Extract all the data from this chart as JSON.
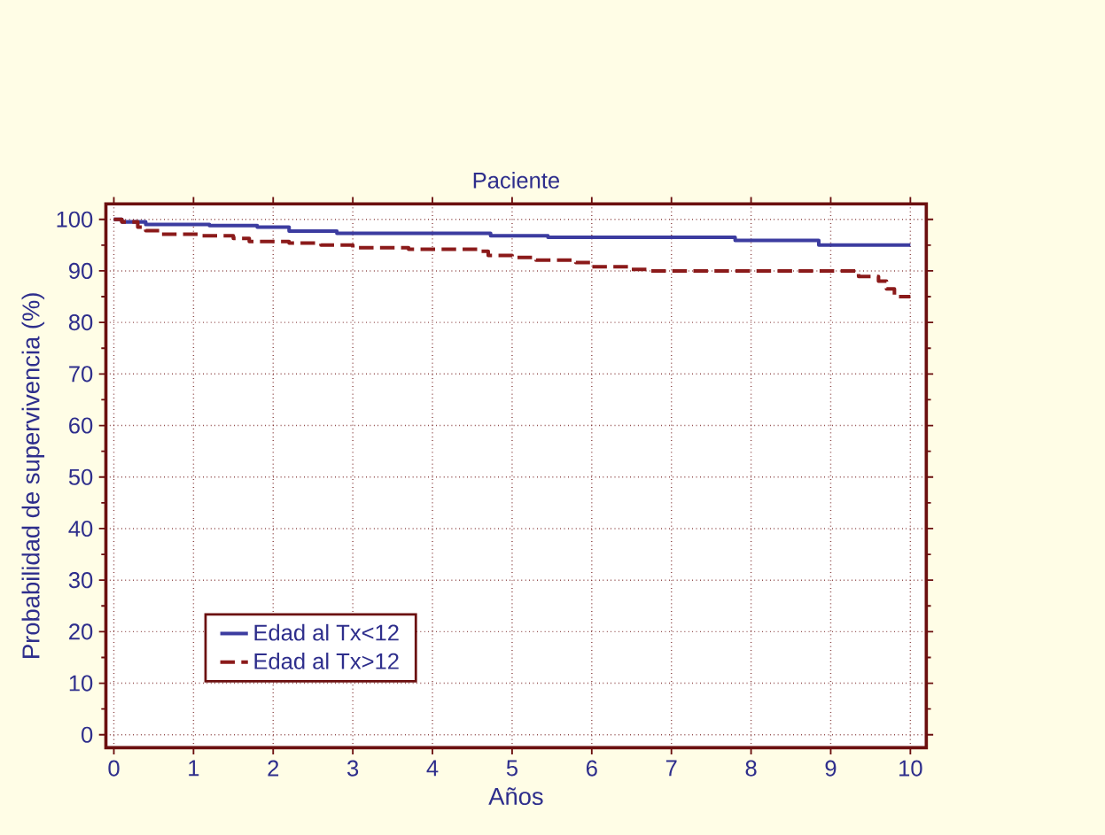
{
  "chart_data": {
    "type": "step",
    "title": "Paciente",
    "xlabel": "Años",
    "ylabel": "Probabilidad de supervivencia (%)",
    "xlim": [
      -0.1,
      10.2
    ],
    "ylim": [
      -2.5,
      103
    ],
    "xticks": [
      0,
      1,
      2,
      3,
      4,
      5,
      6,
      7,
      8,
      9,
      10
    ],
    "yticks": [
      0,
      10,
      20,
      30,
      40,
      50,
      60,
      70,
      80,
      90,
      100
    ],
    "grid": true,
    "legend": "bottom left",
    "series": [
      {
        "name": "Edad al Tx<12",
        "color": "#3c3ca0",
        "line_style": "solid",
        "x": [
          0,
          0.1,
          0.4,
          1.2,
          1.8,
          2.2,
          2.8,
          4.73,
          5.45,
          7.8,
          8.85,
          10
        ],
        "values": [
          100,
          99.5,
          99,
          98.8,
          98.5,
          97.7,
          97.3,
          96.8,
          96.5,
          95.9,
          95,
          95
        ]
      },
      {
        "name": "Edad al Tx>12",
        "color": "#8b1a1a",
        "line_style": "dashed",
        "x": [
          0,
          0.1,
          0.3,
          0.4,
          0.6,
          1.1,
          1.5,
          1.7,
          2.2,
          2.6,
          3.0,
          3.7,
          4.6,
          4.7,
          5.0,
          5.3,
          5.8,
          6.0,
          6.5,
          6.7,
          9.35,
          9.6,
          9.7,
          9.8,
          10
        ],
        "values": [
          100,
          99.5,
          98.5,
          97.8,
          97.1,
          96.8,
          96.3,
          95.7,
          95.4,
          95,
          94.5,
          94.2,
          93.8,
          93,
          92.6,
          92.1,
          91.6,
          90.8,
          90.3,
          90,
          88.9,
          88,
          86.5,
          85,
          85
        ]
      }
    ]
  }
}
